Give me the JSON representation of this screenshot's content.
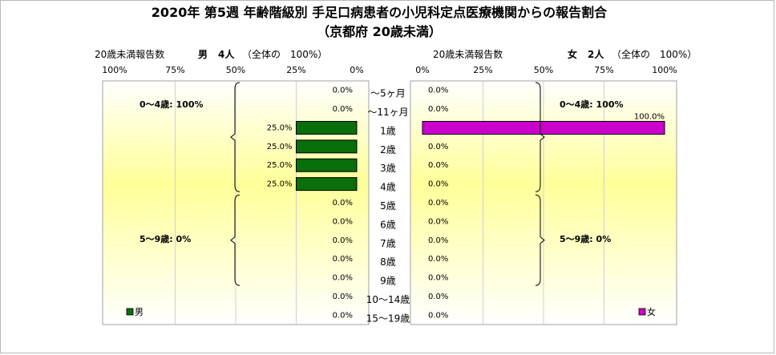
{
  "chart_data": {
    "type": "bar",
    "title": "2020年 第5週 年齢階級別 手足口病患者の小児科定点医療機関からの報告割合",
    "subtitle": "（京都府 20歳未満）",
    "categories": [
      "～5ヶ月",
      "～11ヶ月",
      "1歳",
      "2歳",
      "3歳",
      "4歳",
      "5歳",
      "6歳",
      "7歳",
      "8歳",
      "9歳",
      "10～14歳",
      "15～19歳"
    ],
    "xlim": [
      0,
      100
    ],
    "grid": true,
    "panels": [
      {
        "side": "left",
        "header_label": "20歳未満報告数",
        "header_group": "男",
        "header_count": "4人",
        "header_total": "（全体の　100%）",
        "ticks": [
          "100%",
          "75%",
          "50%",
          "25%",
          "0%"
        ],
        "legend": "男",
        "color": "#0a6e0a",
        "values": [
          0.0,
          0.0,
          25.0,
          25.0,
          25.0,
          25.0,
          0.0,
          0.0,
          0.0,
          0.0,
          0.0,
          0.0,
          0.0
        ],
        "labels": [
          "0.0%",
          "0.0%",
          "25.0%",
          "25.0%",
          "25.0%",
          "25.0%",
          "0.0%",
          "0.0%",
          "0.0%",
          "0.0%",
          "0.0%",
          "0.0%",
          "0.0%"
        ],
        "groups": [
          {
            "label": "0～4歳: 100%",
            "from": 0,
            "to": 5
          },
          {
            "label": "5～9歳: 0%",
            "from": 6,
            "to": 10
          }
        ]
      },
      {
        "side": "right",
        "header_label": "20歳未満報告数",
        "header_group": "女",
        "header_count": "2人",
        "header_total": "（全体の　100%）",
        "ticks": [
          "0%",
          "25%",
          "50%",
          "75%",
          "100%"
        ],
        "legend": "女",
        "color": "#cc00cc",
        "values": [
          0.0,
          0.0,
          100.0,
          0.0,
          0.0,
          0.0,
          0.0,
          0.0,
          0.0,
          0.0,
          0.0,
          0.0,
          0.0
        ],
        "labels": [
          "0.0%",
          "0.0%",
          "100.0%",
          "0.0%",
          "0.0%",
          "0.0%",
          "0.0%",
          "0.0%",
          "0.0%",
          "0.0%",
          "0.0%",
          "0.0%",
          "0.0%"
        ],
        "groups": [
          {
            "label": "0～4歳: 100%",
            "from": 0,
            "to": 5
          },
          {
            "label": "5～9歳: 0%",
            "from": 6,
            "to": 10
          }
        ]
      }
    ]
  }
}
